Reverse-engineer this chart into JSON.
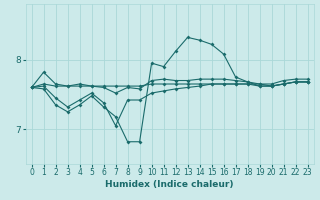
{
  "xlabel": "Humidex (Indice chaleur)",
  "xlim": [
    -0.5,
    23.5
  ],
  "ylim": [
    6.5,
    8.8
  ],
  "yticks": [
    7,
    8
  ],
  "xticks": [
    0,
    1,
    2,
    3,
    4,
    5,
    6,
    7,
    8,
    9,
    10,
    11,
    12,
    13,
    14,
    15,
    16,
    17,
    18,
    19,
    20,
    21,
    22,
    23
  ],
  "bg_color": "#cceaea",
  "grid_color": "#aad8d8",
  "line_color": "#1a6b6b",
  "lines": [
    [
      7.6,
      7.82,
      7.65,
      7.62,
      7.65,
      7.62,
      7.6,
      7.52,
      7.6,
      7.58,
      7.7,
      7.72,
      7.7,
      7.7,
      7.72,
      7.72,
      7.72,
      7.7,
      7.68,
      7.65,
      7.65,
      7.7,
      7.72,
      7.72
    ],
    [
      7.6,
      7.65,
      7.62,
      7.62,
      7.62,
      7.62,
      7.62,
      7.62,
      7.62,
      7.62,
      7.65,
      7.65,
      7.65,
      7.65,
      7.65,
      7.65,
      7.65,
      7.65,
      7.65,
      7.65,
      7.62,
      7.65,
      7.68,
      7.68
    ],
    [
      7.6,
      7.62,
      7.45,
      7.32,
      7.42,
      7.52,
      7.38,
      7.05,
      7.42,
      7.42,
      7.52,
      7.55,
      7.58,
      7.6,
      7.62,
      7.65,
      7.65,
      7.65,
      7.65,
      7.62,
      7.62,
      7.65,
      7.68,
      7.68
    ],
    [
      7.6,
      7.58,
      7.35,
      7.25,
      7.35,
      7.48,
      7.32,
      7.18,
      6.82,
      6.82,
      7.95,
      7.9,
      8.12,
      8.32,
      8.28,
      8.22,
      8.08,
      7.75,
      7.68,
      7.62,
      7.62,
      7.65,
      7.68,
      7.68
    ]
  ]
}
